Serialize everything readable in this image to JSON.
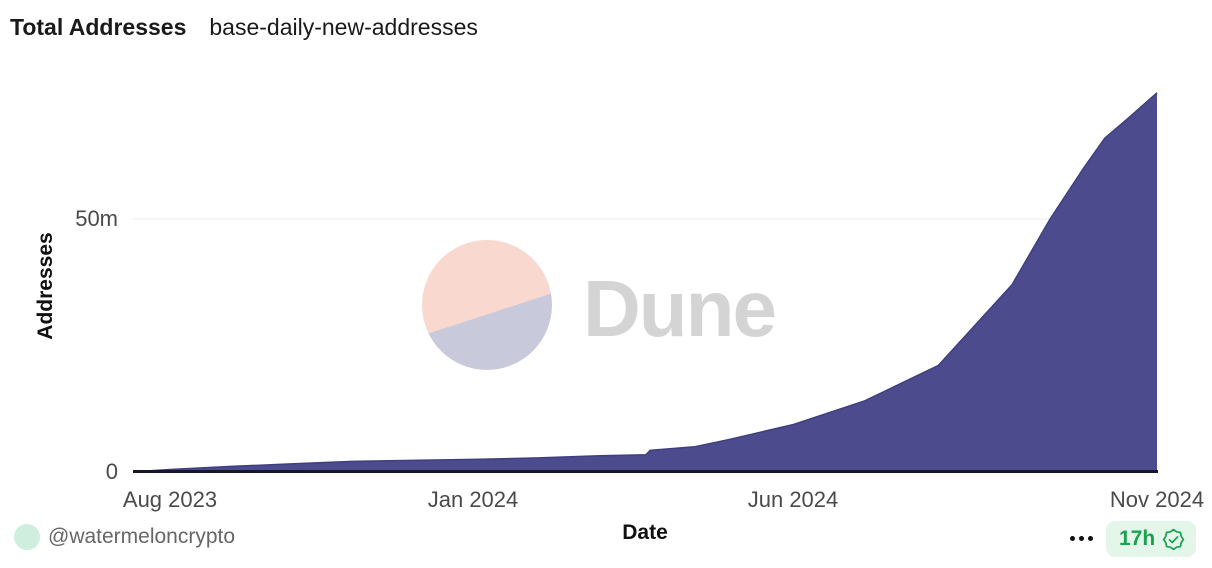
{
  "header": {
    "title": "Total Addresses",
    "query_name": "base-daily-new-addresses"
  },
  "chart_data": {
    "type": "area",
    "title": "Total Addresses",
    "xlabel": "Date",
    "ylabel": "Addresses",
    "value_unit": "millions of addresses",
    "x_domain": [
      "2023-07-16",
      "2024-11-01"
    ],
    "ylim": [
      0,
      79
    ],
    "grid": "single horizontal gridline at 50m",
    "legend": "none",
    "x_ticks": [
      {
        "date": "2023-08-01",
        "label": "Aug 2023"
      },
      {
        "date": "2024-01-01",
        "label": "Jan 2024"
      },
      {
        "date": "2024-06-01",
        "label": "Jun 2024"
      },
      {
        "date": "2024-11-01",
        "label": "Nov 2024"
      }
    ],
    "y_ticks": [
      {
        "value": 0,
        "label": "0"
      },
      {
        "value": 50,
        "label": "50m"
      }
    ],
    "series": [
      {
        "name": "Total Addresses",
        "color": "#4b4b8e",
        "line_color": "#3f3f7e",
        "points": [
          [
            "2023-07-16",
            0.0
          ],
          [
            "2023-08-01",
            0.4
          ],
          [
            "2023-09-01",
            1.0
          ],
          [
            "2023-10-01",
            1.5
          ],
          [
            "2023-11-01",
            2.0
          ],
          [
            "2023-12-01",
            2.2
          ],
          [
            "2024-01-01",
            2.4
          ],
          [
            "2024-02-01",
            2.7
          ],
          [
            "2024-03-01",
            3.1
          ],
          [
            "2024-03-23",
            3.3
          ],
          [
            "2024-03-25",
            4.2
          ],
          [
            "2024-04-15",
            4.9
          ],
          [
            "2024-05-01",
            6.3
          ],
          [
            "2024-06-01",
            9.3
          ],
          [
            "2024-07-01",
            14.0
          ],
          [
            "2024-08-01",
            21.0
          ],
          [
            "2024-09-01",
            37.0
          ],
          [
            "2024-09-17",
            50.0
          ],
          [
            "2024-10-01",
            60.0
          ],
          [
            "2024-10-10",
            66.0
          ],
          [
            "2024-10-20",
            70.0
          ],
          [
            "2024-11-01",
            75.0
          ]
        ]
      }
    ]
  },
  "watermark": {
    "brand": "Dune",
    "logo_top_color": "#f9d8d0",
    "logo_bottom_color": "#c9c9dc",
    "text_color": "#d4d4d4"
  },
  "footer": {
    "author_handle": "@watermeloncrypto",
    "updated_age": "17h",
    "more_icon": "kebab-horizontal",
    "verified_icon": "verified-seal-check"
  },
  "colors": {
    "background": "#ffffff",
    "title_text": "#1a1a1a",
    "tick_text": "#4a4a4a",
    "axis_line": "#16162c",
    "gridline": "#e8e8e8",
    "avatar_bg": "#cfeedd",
    "handle_text": "#666666",
    "badge_bg": "#e4f5ea",
    "badge_text": "#18a350",
    "kebab_dot": "#111111",
    "wm_top": "#f9d8d0",
    "wm_bottom": "#c9c9dc",
    "wm_text": "#d4d4d4"
  }
}
